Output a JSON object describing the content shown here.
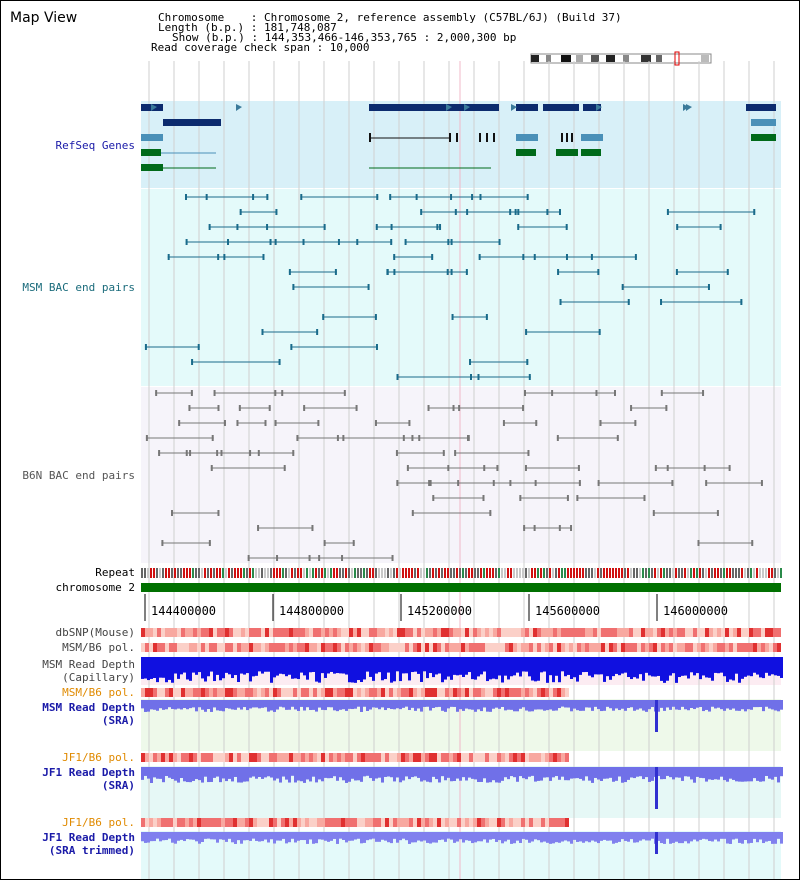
{
  "panel": {
    "title": "Map View"
  },
  "info": {
    "chromosome": "Chromosome    : Chromosome 2, reference assembly (C57BL/6J) (Build 37)",
    "length": "Length (b.p.) : 181,748,087",
    "show": "Show (b.p.) : 144,353,466-146,353,765 : 2,000,300 bp",
    "coverage": "Read coverage check span : 10,000"
  },
  "tracks": {
    "refseq": "RefSeq Genes",
    "msm_bac": "MSM BAC end pairs",
    "b6n_bac": "B6N BAC end pairs",
    "repeat": "Repeat",
    "chromosome": "chromosome 2",
    "dbsnp": "dbSNP(Mouse)",
    "msm_b6_pol": "MSM/B6 pol.",
    "msm_depth_cap": "MSM Read Depth\n(Capillary)",
    "msm_b6_pol2": "MSM/B6 pol.",
    "msm_depth_sra": "MSM Read Depth\n(SRA)",
    "jf1_b6_pol": "JF1/B6 pol.",
    "jf1_depth_sra": "JF1 Read Depth\n(SRA)",
    "jf1_b6_pol2": "JF1/B6 pol.",
    "jf1_depth_trim": "JF1 Read Depth\n(SRA trimmed)"
  },
  "axis": {
    "ticks": [
      "144400000",
      "144800000",
      "145200000",
      "145600000",
      "146000000"
    ]
  },
  "colors": {
    "navy_label": "#1a1aa8",
    "teal_label": "#1a6b7b",
    "orange_label": "#e08a00",
    "gray_label": "#444444",
    "refseq_bg": "#d8f0f8",
    "bac_bg": "#e4fafa",
    "b6n_bg": "#f6f4fa",
    "chrom_bar": "#007000"
  }
}
